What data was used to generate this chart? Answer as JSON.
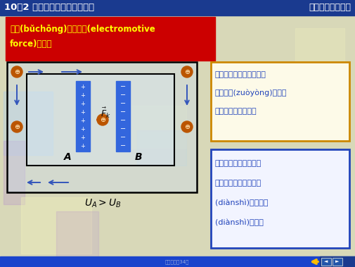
{
  "bg_color": "#d8d8b8",
  "title_bar_color": "#1a3a8f",
  "title_left": "10－2 动生电动势和感生电动势",
  "title_right": "第十三章电磁感应",
  "title_text_color": "#ffffff",
  "header_red_color": "#cc0000",
  "header_text_line1": "补充(bǔchōng)：电动势(electromotive",
  "header_text_line2": "force)的概念",
  "header_text_color": "#ffff00",
  "plate_color": "#3366dd",
  "outer_box_text_color": "#2244bb",
  "inner_box_text_color": "#2244bb",
  "outer_box_border": "#cc8800",
  "inner_box_border": "#2244bb",
  "arrow_color": "#3355bb",
  "red_arrow_color": "#cc2200",
  "charge_color": "#bb5500",
  "bottom_bar_color": "#1a44cc",
  "bottom_text": "第二张，共34张",
  "deco_blue": "#aaccee",
  "deco_purple": "#bb99cc",
  "deco_yellow": "#eeeebb",
  "fig_width": 5.05,
  "fig_height": 3.79,
  "dpi": 100
}
